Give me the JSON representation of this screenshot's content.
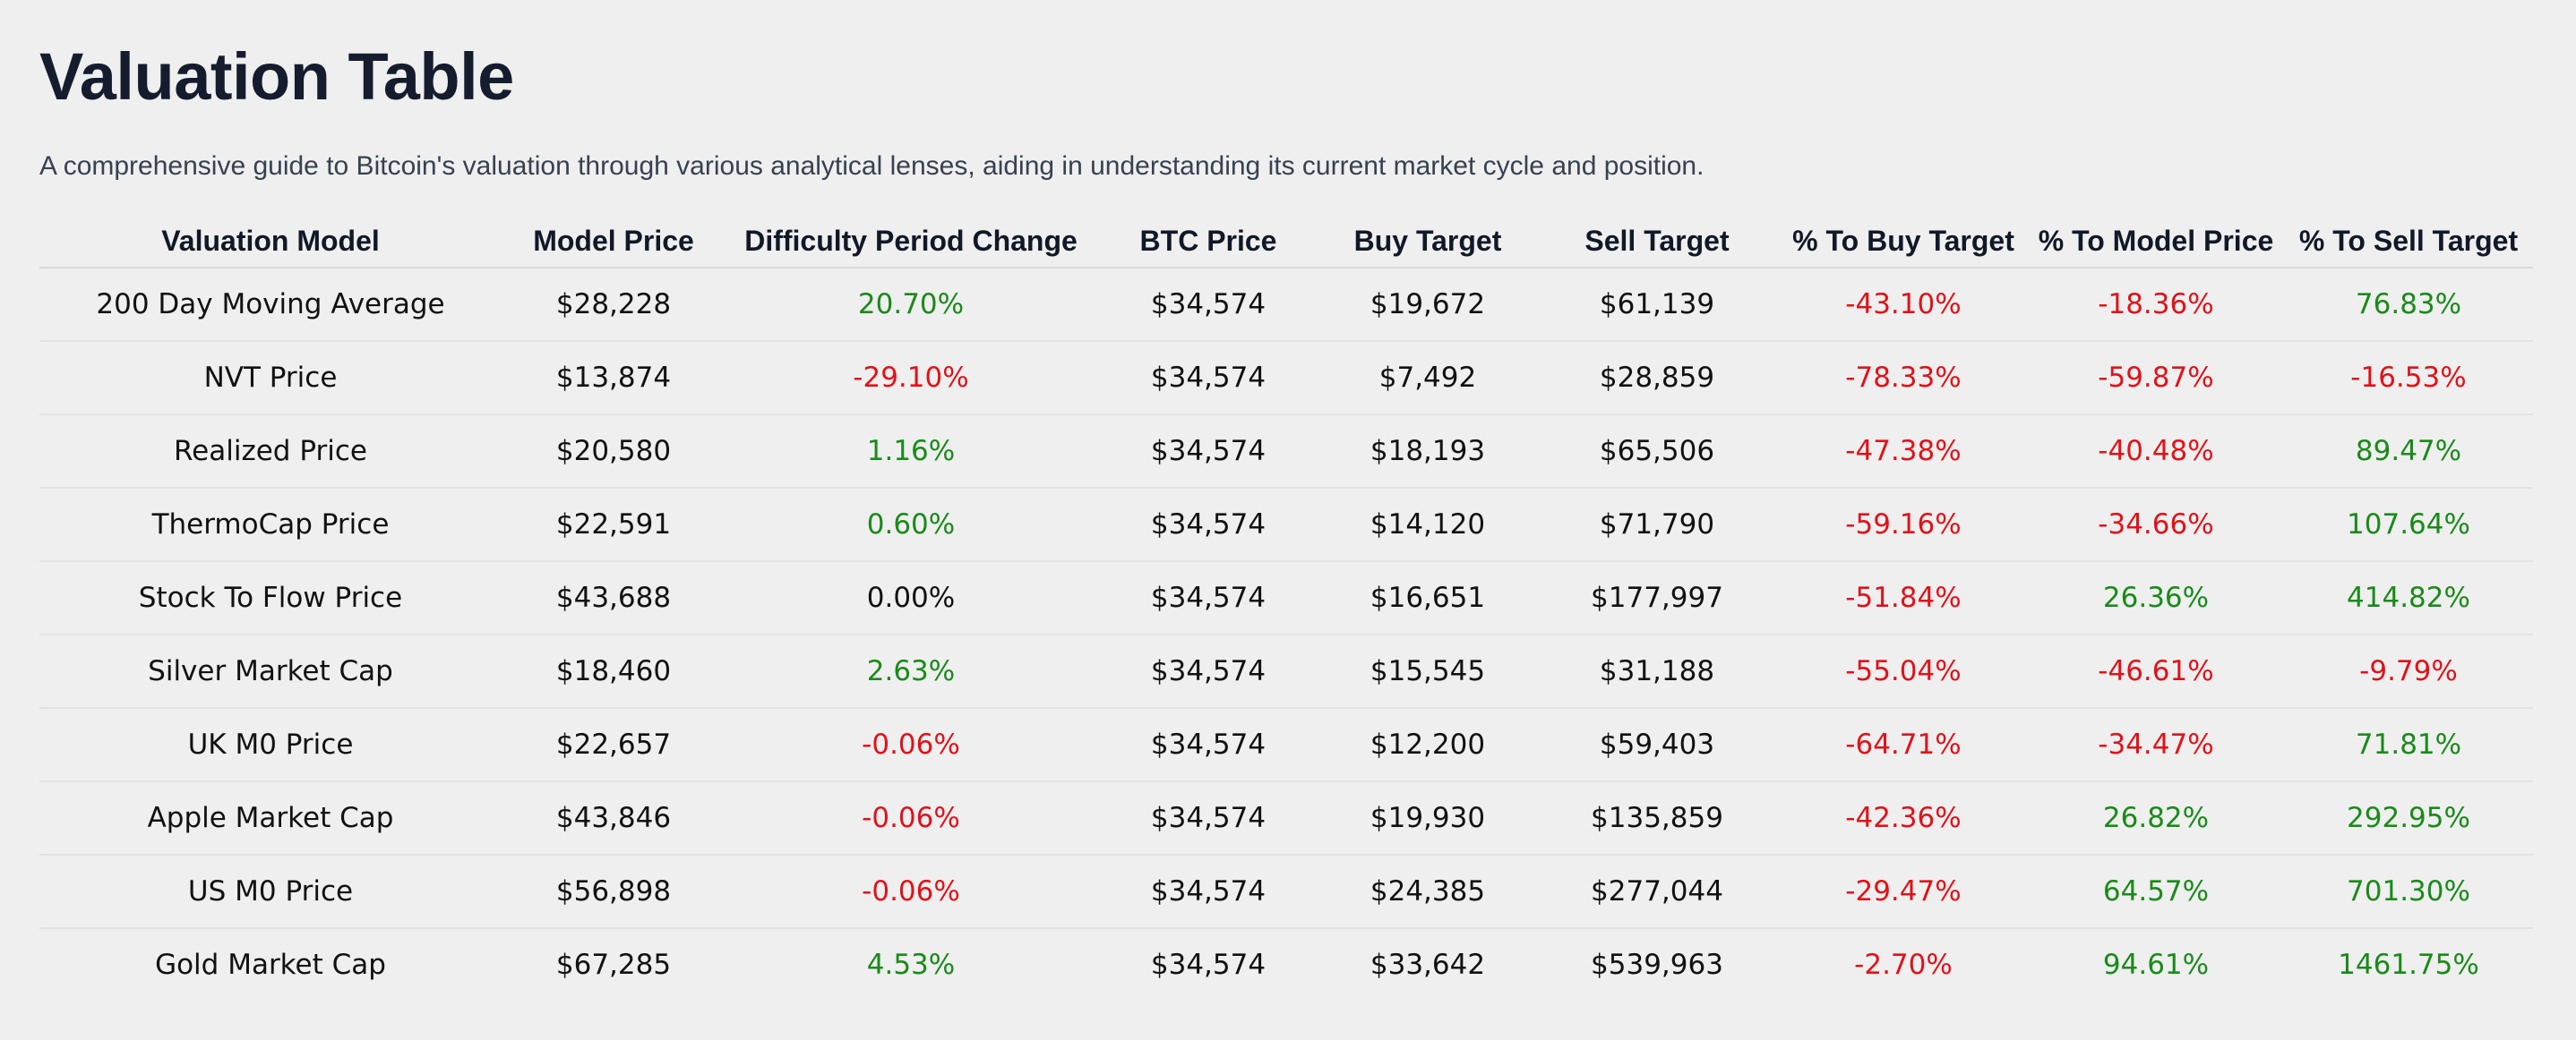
{
  "page": {
    "title": "Valuation Table",
    "subtitle": "A comprehensive guide to Bitcoin's valuation through various analytical lenses, aiding in understanding its current market cycle and position."
  },
  "colors": {
    "positive": "#1a8a1a",
    "negative": "#e0121a",
    "background": "#efefef",
    "title": "#141c2e"
  },
  "table": {
    "headers": [
      "Valuation Model",
      "Model Price",
      "Difficulty Period Change",
      "BTC Price",
      "Buy Target",
      "Sell Target",
      "% To Buy Target",
      "% To Model Price",
      "% To Sell Target"
    ],
    "rows": [
      [
        "200 Day Moving Average",
        "$28,228",
        "20.70%",
        "$34,574",
        "$19,672",
        "$61,139",
        "-43.10%",
        "-18.36%",
        "76.83%"
      ],
      [
        "NVT Price",
        "$13,874",
        "-29.10%",
        "$34,574",
        "$7,492",
        "$28,859",
        "-78.33%",
        "-59.87%",
        "-16.53%"
      ],
      [
        "Realized Price",
        "$20,580",
        "1.16%",
        "$34,574",
        "$18,193",
        "$65,506",
        "-47.38%",
        "-40.48%",
        "89.47%"
      ],
      [
        "ThermoCap Price",
        "$22,591",
        "0.60%",
        "$34,574",
        "$14,120",
        "$71,790",
        "-59.16%",
        "-34.66%",
        "107.64%"
      ],
      [
        "Stock To Flow Price",
        "$43,688",
        "0.00%",
        "$34,574",
        "$16,651",
        "$177,997",
        "-51.84%",
        "26.36%",
        "414.82%"
      ],
      [
        "Silver Market Cap",
        "$18,460",
        "2.63%",
        "$34,574",
        "$15,545",
        "$31,188",
        "-55.04%",
        "-46.61%",
        "-9.79%"
      ],
      [
        "UK M0 Price",
        "$22,657",
        "-0.06%",
        "$34,574",
        "$12,200",
        "$59,403",
        "-64.71%",
        "-34.47%",
        "71.81%"
      ],
      [
        "Apple Market Cap",
        "$43,846",
        "-0.06%",
        "$34,574",
        "$19,930",
        "$135,859",
        "-42.36%",
        "26.82%",
        "292.95%"
      ],
      [
        "US M0 Price",
        "$56,898",
        "-0.06%",
        "$34,574",
        "$24,385",
        "$277,044",
        "-29.47%",
        "64.57%",
        "701.30%"
      ],
      [
        "Gold Market Cap",
        "$67,285",
        "4.53%",
        "$34,574",
        "$33,642",
        "$539,963",
        "-2.70%",
        "94.61%",
        "1461.75%"
      ]
    ]
  }
}
